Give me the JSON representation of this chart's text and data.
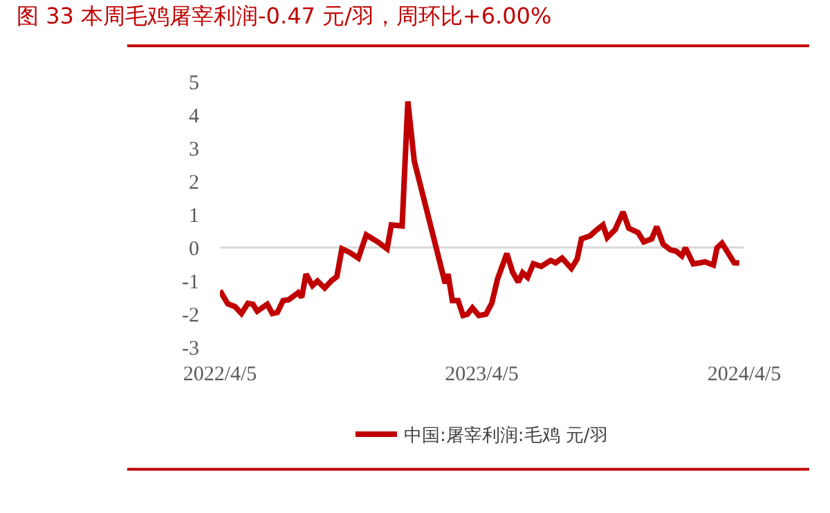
{
  "chart_data": {
    "type": "line",
    "title": "图 33 本周毛鸡屠宰利润-0.47 元/羽，周环比+6.00%",
    "series": [
      {
        "name": "中国:屠宰利润:毛鸡 元/羽",
        "color": "#c00000",
        "x": [
          "2022-04-05",
          "2022-04-16",
          "2022-04-26",
          "2022-05-05",
          "2022-05-14",
          "2022-05-21",
          "2022-05-27",
          "2022-06-10",
          "2022-06-17",
          "2022-06-24",
          "2022-07-02",
          "2022-07-10",
          "2022-07-23",
          "2022-07-28",
          "2022-08-03",
          "2022-08-12",
          "2022-08-19",
          "2022-08-29",
          "2022-09-08",
          "2022-09-15",
          "2022-09-22",
          "2022-10-03",
          "2022-10-15",
          "2022-10-26",
          "2022-11-11",
          "2022-11-24",
          "2022-11-30",
          "2022-12-15",
          "2022-12-23",
          "2023-01-01",
          "2023-01-14",
          "2023-01-27",
          "2023-02-09",
          "2023-02-13",
          "2023-02-17",
          "2023-02-23",
          "2023-03-03",
          "2023-03-10",
          "2023-03-16",
          "2023-03-23",
          "2023-04-01",
          "2023-04-11",
          "2023-04-19",
          "2023-04-27",
          "2023-05-10",
          "2023-05-18",
          "2023-05-26",
          "2023-06-01",
          "2023-06-08",
          "2023-06-16",
          "2023-06-27",
          "2023-07-10",
          "2023-07-17",
          "2023-07-26",
          "2023-08-08",
          "2023-08-16",
          "2023-08-22",
          "2023-09-03",
          "2023-09-11",
          "2023-09-21",
          "2023-09-27",
          "2023-10-08",
          "2023-10-19",
          "2023-10-27",
          "2023-11-09",
          "2023-11-17",
          "2023-11-28",
          "2023-12-05",
          "2023-12-14",
          "2023-12-24",
          "2024-01-01",
          "2024-01-09",
          "2024-01-14",
          "2024-01-25",
          "2024-02-04",
          "2024-02-10",
          "2024-02-22",
          "2024-02-27",
          "2024-03-05",
          "2024-03-13",
          "2024-03-22",
          "2024-03-29"
        ],
        "values": [
          -1.3,
          -1.7,
          -1.78,
          -1.99,
          -1.68,
          -1.71,
          -1.92,
          -1.71,
          -1.99,
          -1.96,
          -1.6,
          -1.57,
          -1.36,
          -1.5,
          -0.8,
          -1.15,
          -1.01,
          -1.22,
          -0.99,
          -0.88,
          -0.04,
          -0.15,
          -0.32,
          0.38,
          0.17,
          -0.04,
          0.68,
          0.65,
          4.4,
          2.6,
          1.49,
          0.38,
          -0.74,
          -1.08,
          -0.8,
          -1.6,
          -1.6,
          -2.05,
          -2.01,
          -1.82,
          -2.05,
          -2.01,
          -1.68,
          -0.95,
          -0.18,
          -0.74,
          -1.04,
          -0.76,
          -0.9,
          -0.49,
          -0.57,
          -0.39,
          -0.46,
          -0.32,
          -0.63,
          -0.35,
          0.26,
          0.35,
          0.51,
          0.68,
          0.3,
          0.54,
          1.07,
          0.58,
          0.45,
          0.17,
          0.26,
          0.63,
          0.1,
          -0.07,
          -0.11,
          -0.25,
          -0.01,
          -0.49,
          -0.46,
          -0.43,
          -0.53,
          -0.01,
          0.13,
          -0.15,
          -0.46,
          -0.47
        ]
      }
    ],
    "xlim": [
      "2022-04-05",
      "2024-04-05"
    ],
    "xticks": [
      {
        "value": "2022-04-05",
        "label": "2022/4/5"
      },
      {
        "value": "2023-04-05",
        "label": "2023/4/5"
      },
      {
        "value": "2024-04-05",
        "label": "2024/4/5"
      }
    ],
    "ylim": [
      -3,
      5
    ],
    "yticks": [
      -3,
      -2,
      -1,
      0,
      1,
      2,
      3,
      4,
      5
    ],
    "ref_lines": [
      {
        "axis": "y",
        "value": 0,
        "color": "#d9d9d9"
      }
    ],
    "grid": false,
    "legend": "bottom",
    "marker": "none",
    "line_style": "solid"
  }
}
